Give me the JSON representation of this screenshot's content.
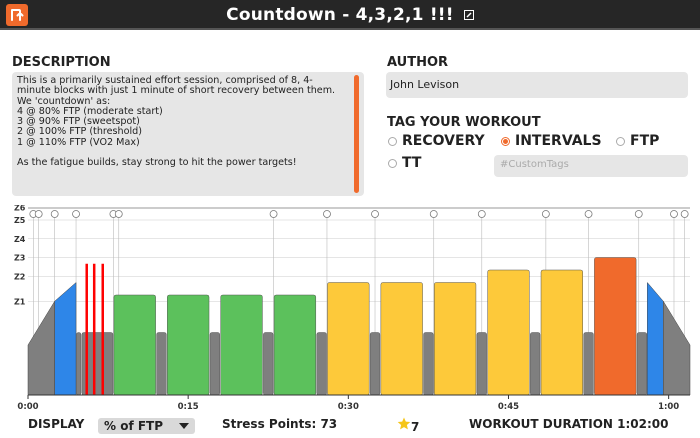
{
  "window": {
    "title": "Countdown - 4,3,2,1 !!!"
  },
  "description": {
    "heading": "DESCRIPTION",
    "text": "This is a primarily sustained effort session, comprised of 8, 4-minute blocks with just 1 minute of short recovery between them.\nWe 'countdown' as:\n4 @ 80% FTP (moderate start)\n3 @ 90% FTP (sweetspot)\n2 @ 100% FTP (threshold)\n1 @ 110% FTP (VO2 Max)\n\nAs the fatigue builds, stay strong to hit the power targets!"
  },
  "author": {
    "heading": "AUTHOR",
    "name": "John Levison"
  },
  "tags": {
    "heading": "TAG YOUR WORKOUT",
    "options": [
      {
        "label": "RECOVERY",
        "selected": false
      },
      {
        "label": "INTERVALS",
        "selected": true
      },
      {
        "label": "FTP",
        "selected": false
      },
      {
        "label": "TT",
        "selected": false
      }
    ],
    "custom_placeholder": "#CustomTags"
  },
  "zones": [
    "Z6",
    "Z5",
    "Z4",
    "Z3",
    "Z2",
    "Z1"
  ],
  "colors": {
    "accent": "#f06a2c",
    "gray": "#7f7f7f",
    "blue": "#2e86e8",
    "green": "#5cc15c",
    "yellow": "#fdc93a",
    "orange": "#f06a2c",
    "red": "#ff0000"
  },
  "chart_data": {
    "type": "bar",
    "x_ticks": [
      "0:00",
      "0:15",
      "0:30",
      "0:45",
      "1:00"
    ],
    "y_labels": [
      "Z6",
      "Z5",
      "Z4",
      "Z3",
      "Z2",
      "Z1"
    ],
    "unit": "% of FTP",
    "segments": [
      {
        "kind": "ramp",
        "start_min": 0,
        "dur_min": 2.5,
        "from": 40,
        "to": 75,
        "color": "gray"
      },
      {
        "kind": "ramp",
        "start_min": 2.5,
        "dur_min": 2,
        "from": 75,
        "to": 90,
        "color": "blue"
      },
      {
        "kind": "block",
        "start_min": 4.5,
        "dur_min": 0.5,
        "value": 50,
        "color": "gray"
      },
      {
        "kind": "block",
        "start_min": 5,
        "dur_min": 3,
        "value": 50,
        "color": "gray"
      },
      {
        "kind": "block",
        "start_min": 8,
        "dur_min": 4,
        "value": 80,
        "color": "green"
      },
      {
        "kind": "block",
        "start_min": 12,
        "dur_min": 1,
        "value": 50,
        "color": "gray"
      },
      {
        "kind": "block",
        "start_min": 13,
        "dur_min": 4,
        "value": 80,
        "color": "green"
      },
      {
        "kind": "block",
        "start_min": 17,
        "dur_min": 1,
        "value": 50,
        "color": "gray"
      },
      {
        "kind": "block",
        "start_min": 18,
        "dur_min": 4,
        "value": 80,
        "color": "green"
      },
      {
        "kind": "block",
        "start_min": 22,
        "dur_min": 1,
        "value": 50,
        "color": "gray"
      },
      {
        "kind": "block",
        "start_min": 23,
        "dur_min": 4,
        "value": 80,
        "color": "green"
      },
      {
        "kind": "block",
        "start_min": 27,
        "dur_min": 1,
        "value": 50,
        "color": "gray"
      },
      {
        "kind": "block",
        "start_min": 28,
        "dur_min": 4,
        "value": 90,
        "color": "yellow"
      },
      {
        "kind": "block",
        "start_min": 32,
        "dur_min": 1,
        "value": 50,
        "color": "gray"
      },
      {
        "kind": "block",
        "start_min": 33,
        "dur_min": 4,
        "value": 90,
        "color": "yellow"
      },
      {
        "kind": "block",
        "start_min": 37,
        "dur_min": 1,
        "value": 50,
        "color": "gray"
      },
      {
        "kind": "block",
        "start_min": 38,
        "dur_min": 4,
        "value": 90,
        "color": "yellow"
      },
      {
        "kind": "block",
        "start_min": 42,
        "dur_min": 1,
        "value": 50,
        "color": "gray"
      },
      {
        "kind": "block",
        "start_min": 43,
        "dur_min": 4,
        "value": 100,
        "color": "yellow"
      },
      {
        "kind": "block",
        "start_min": 47,
        "dur_min": 1,
        "value": 50,
        "color": "gray"
      },
      {
        "kind": "block",
        "start_min": 48,
        "dur_min": 4,
        "value": 100,
        "color": "yellow"
      },
      {
        "kind": "block",
        "start_min": 52,
        "dur_min": 1,
        "value": 50,
        "color": "gray"
      },
      {
        "kind": "block",
        "start_min": 53,
        "dur_min": 4,
        "value": 110,
        "color": "orange"
      },
      {
        "kind": "block",
        "start_min": 57,
        "dur_min": 1,
        "value": 50,
        "color": "gray"
      },
      {
        "kind": "ramp",
        "start_min": 58,
        "dur_min": 1.5,
        "from": 90,
        "to": 75,
        "color": "blue"
      },
      {
        "kind": "ramp",
        "start_min": 59.5,
        "dur_min": 2.5,
        "from": 75,
        "to": 40,
        "color": "gray"
      }
    ],
    "sprint_markers_min": [
      5.5,
      6.2,
      7.0
    ],
    "marker_times_min": [
      0.5,
      1,
      2.5,
      4.5,
      8,
      8.5,
      23,
      28,
      32.5,
      38,
      42.5,
      48.5,
      52.5,
      57.2,
      60.5,
      61.5
    ]
  },
  "footer": {
    "display_label": "DISPLAY",
    "display_unit": "% of FTP",
    "stress_label": "Stress Points: 73",
    "stars": "7",
    "duration": "WORKOUT DURATION 1:02:00"
  }
}
